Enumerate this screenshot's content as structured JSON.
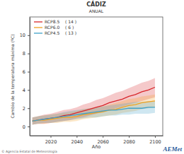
{
  "chart_data": {
    "type": "line",
    "title": "CÁDIZ",
    "subtitle": "ANUAL",
    "x_label": "Año",
    "y_label": "Cambio de la temperatura máxima (ºC)",
    "source": "© Agencia Estatal de Meteorología",
    "logo": "AEMet",
    "legend": "top-left",
    "grid": false,
    "xlim": [
      2004,
      2106
    ],
    "xticks": [
      2020,
      2040,
      2060,
      2080,
      2100
    ],
    "ylim": [
      -1,
      12
    ],
    "yticks": [
      0,
      2,
      4,
      6,
      8,
      10
    ],
    "x": [
      2006,
      2010,
      2015,
      2020,
      2025,
      2030,
      2035,
      2040,
      2045,
      2050,
      2055,
      2060,
      2065,
      2070,
      2075,
      2080,
      2085,
      2090,
      2095,
      2100
    ],
    "series": [
      {
        "name": "RCP8.5",
        "models": {
          "value": 14,
          "label": "( 14 )"
        },
        "color": "#d7262b",
        "values": [
          0.6,
          0.7,
          0.8,
          0.9,
          1.0,
          1.2,
          1.3,
          1.5,
          1.7,
          1.9,
          2.1,
          2.3,
          2.6,
          2.8,
          3.0,
          3.3,
          3.5,
          3.8,
          4.0,
          4.3
        ],
        "lower": [
          0.2,
          0.3,
          0.3,
          0.4,
          0.5,
          0.6,
          0.7,
          0.9,
          1.0,
          1.2,
          1.4,
          1.6,
          1.8,
          2.0,
          2.2,
          2.4,
          2.6,
          2.8,
          3.0,
          3.2
        ],
        "upper": [
          1.0,
          1.1,
          1.3,
          1.4,
          1.6,
          1.8,
          1.9,
          2.1,
          2.4,
          2.6,
          2.9,
          3.1,
          3.4,
          3.7,
          3.9,
          4.2,
          4.5,
          4.8,
          5.0,
          5.3
        ]
      },
      {
        "name": "RCP6.0",
        "models": {
          "value": 6,
          "label": "( 6 )"
        },
        "color": "#f2a11f",
        "values": [
          0.6,
          0.7,
          0.7,
          0.8,
          0.9,
          1.0,
          1.0,
          1.1,
          1.3,
          1.4,
          1.5,
          1.6,
          1.8,
          1.9,
          2.1,
          2.3,
          2.4,
          2.6,
          2.7,
          2.8
        ],
        "lower": [
          0.2,
          0.3,
          0.3,
          0.4,
          0.4,
          0.5,
          0.5,
          0.6,
          0.8,
          0.9,
          1.0,
          1.1,
          1.2,
          1.3,
          1.5,
          1.6,
          1.7,
          1.9,
          2.0,
          2.1
        ],
        "upper": [
          1.0,
          1.1,
          1.2,
          1.3,
          1.4,
          1.5,
          1.6,
          1.7,
          1.9,
          2.0,
          2.1,
          2.2,
          2.4,
          2.6,
          2.8,
          3.0,
          3.1,
          3.3,
          3.4,
          3.5
        ]
      },
      {
        "name": "RCP4.5",
        "models": {
          "value": 13,
          "label": "( 13 )"
        },
        "color": "#3fa1c8",
        "values": [
          0.6,
          0.7,
          0.8,
          0.9,
          1.0,
          1.1,
          1.2,
          1.3,
          1.4,
          1.5,
          1.6,
          1.7,
          1.8,
          1.8,
          1.9,
          2.0,
          2.0,
          2.0,
          2.1,
          2.1
        ],
        "lower": [
          0.2,
          0.3,
          0.4,
          0.4,
          0.5,
          0.6,
          0.7,
          0.8,
          0.9,
          1.0,
          1.0,
          1.1,
          1.2,
          1.2,
          1.3,
          1.3,
          1.4,
          1.4,
          1.4,
          1.5
        ],
        "upper": [
          1.0,
          1.1,
          1.2,
          1.3,
          1.4,
          1.6,
          1.7,
          1.8,
          1.9,
          2.0,
          2.1,
          2.2,
          2.3,
          2.4,
          2.5,
          2.6,
          2.7,
          2.7,
          2.8,
          2.8
        ]
      }
    ]
  }
}
